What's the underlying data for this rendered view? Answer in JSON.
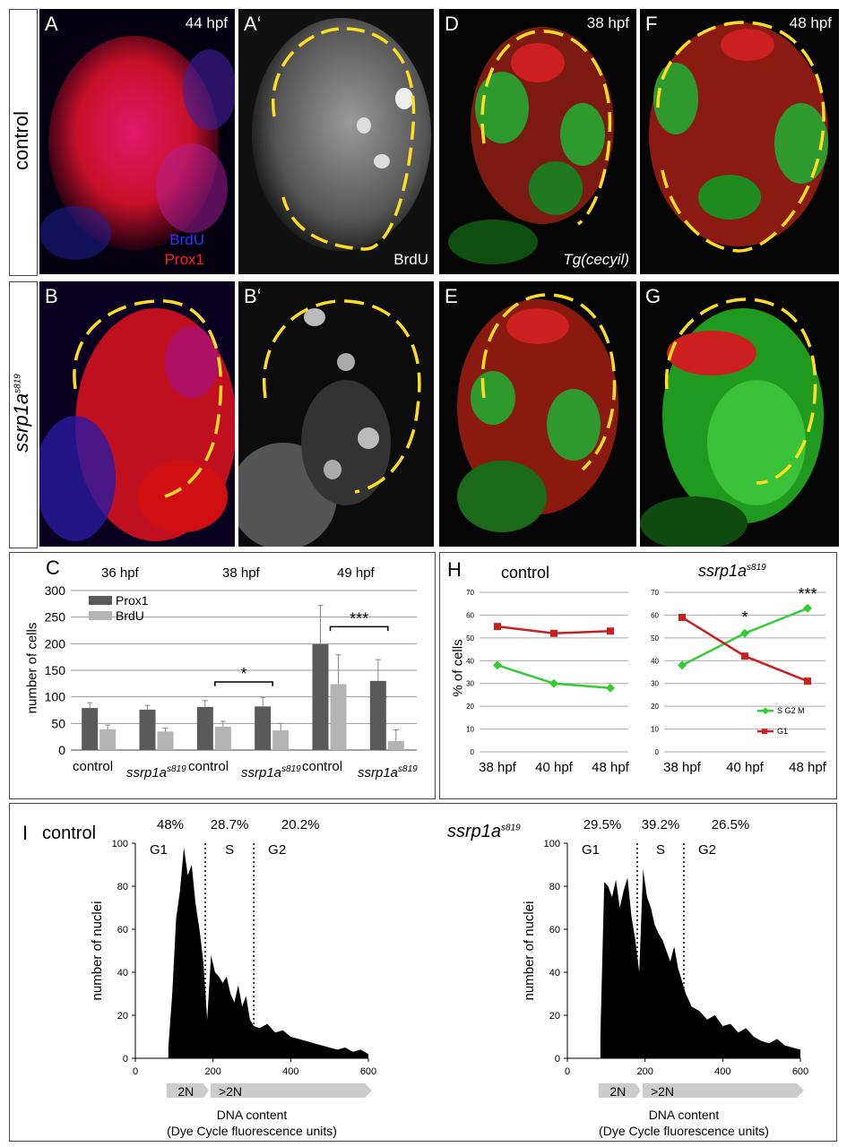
{
  "row_labels": {
    "control": "control",
    "mutant_base": "ssrp1a",
    "mutant_sup": "s819"
  },
  "micrographs": {
    "A": {
      "label": "A",
      "time": "44 hpf",
      "stain1": "BrdU",
      "stain2": "Prox1",
      "colors": {
        "stain1": "#3333ff",
        "stain2": "#ff2020"
      }
    },
    "A_prime": {
      "label": "A‘",
      "stain": "BrdU"
    },
    "B": {
      "label": "B"
    },
    "B_prime": {
      "label": "B‘"
    },
    "D": {
      "label": "D",
      "time": "38 hpf",
      "transgene": "Tg(cecyil)"
    },
    "E": {
      "label": "E"
    },
    "F": {
      "label": "F",
      "time": "48 hpf"
    },
    "G": {
      "label": "G"
    }
  },
  "panel_C": {
    "label": "C",
    "ylabel": "number of cells",
    "legend": [
      "Prox1",
      "BrdU"
    ],
    "time_labels": [
      "36 hpf",
      "38 hpf",
      "49 hpf"
    ],
    "significance": [
      "*",
      "***"
    ]
  },
  "panel_H": {
    "label": "H",
    "ylabel": "% of cells",
    "titles": [
      "control",
      "ssrp1a"
    ],
    "title_sup": "s819",
    "significance": [
      "*",
      "***"
    ]
  },
  "panel_I": {
    "label": "I",
    "titles": [
      "control",
      "ssrp1a"
    ],
    "title_sup": "s819",
    "ylabel": "number of nuclei",
    "xlabel": "DNA content",
    "xlabel2": "(Dye Cycle fluorescence units)",
    "phase_labels": [
      "G1",
      "S",
      "G2"
    ],
    "ploidy_labels": [
      "2N",
      ">2N"
    ],
    "percentages": [
      [
        "48%",
        "28.7%",
        "20.2%"
      ],
      [
        "29.5%",
        "39.2%",
        "26.5%"
      ]
    ]
  },
  "chart_data": [
    {
      "type": "bar",
      "panel": "C",
      "categories": [
        "control",
        "ssrp1a s819",
        "control",
        "ssrp1a s819",
        "control",
        "ssrp1a s819"
      ],
      "groups": [
        "36 hpf",
        "36 hpf",
        "38 hpf",
        "38 hpf",
        "49 hpf",
        "49 hpf"
      ],
      "series": [
        {
          "name": "Prox1",
          "values": [
            79,
            76,
            81,
            82,
            199,
            130
          ],
          "errors": [
            10,
            8,
            12,
            17,
            73,
            40
          ],
          "color": "#5a5a5a"
        },
        {
          "name": "BrdU",
          "values": [
            39,
            35,
            44,
            37,
            124,
            17
          ],
          "errors": [
            8,
            6,
            10,
            13,
            55,
            21
          ],
          "color": "#b4b4b4"
        }
      ],
      "ylabel": "number of cells",
      "ylim": [
        0,
        300
      ],
      "yticks": [
        0,
        50,
        100,
        150,
        200,
        250,
        300
      ],
      "grid": true,
      "legend": "top-left"
    },
    {
      "type": "line",
      "panel": "H-control",
      "title": "control",
      "x": [
        "38 hpf",
        "40 hpf",
        "48 hpf"
      ],
      "series": [
        {
          "name": "S G2 M",
          "values": [
            38,
            30,
            28
          ],
          "color": "#33cc33"
        },
        {
          "name": "G1",
          "values": [
            55,
            52,
            53
          ],
          "color": "#c82020"
        }
      ],
      "ylabel": "% of cells",
      "ylim": [
        0,
        70
      ],
      "yticks": [
        0,
        10,
        20,
        30,
        40,
        50,
        60,
        70
      ],
      "grid": true
    },
    {
      "type": "line",
      "panel": "H-mutant",
      "title": "ssrp1a s819",
      "x": [
        "38 hpf",
        "40 hpf",
        "48 hpf"
      ],
      "series": [
        {
          "name": "S G2 M",
          "values": [
            38,
            52,
            63
          ],
          "color": "#33cc33"
        },
        {
          "name": "G1",
          "values": [
            59,
            42,
            31
          ],
          "color": "#c82020"
        }
      ],
      "ylim": [
        0,
        70
      ],
      "yticks": [
        0,
        10,
        20,
        30,
        40,
        50,
        60,
        70
      ],
      "grid": true,
      "legend": "bottom-right"
    },
    {
      "type": "area",
      "panel": "I-control",
      "title": "control",
      "xlabel": "DNA content",
      "ylabel": "number of nuclei",
      "xlim": [
        0,
        600
      ],
      "ylim": [
        0,
        100
      ],
      "xticks": [
        0,
        200,
        400,
        600
      ],
      "yticks": [
        0,
        20,
        40,
        60,
        80,
        100
      ],
      "gates": [
        180,
        305
      ],
      "x": [
        85,
        95,
        105,
        115,
        125,
        135,
        145,
        155,
        165,
        175,
        185,
        195,
        205,
        215,
        225,
        235,
        245,
        255,
        265,
        275,
        285,
        295,
        305,
        320,
        340,
        360,
        380,
        400,
        420,
        440,
        460,
        480,
        500,
        520,
        540,
        560,
        580,
        600
      ],
      "values": [
        5,
        30,
        65,
        78,
        98,
        85,
        90,
        72,
        60,
        45,
        18,
        48,
        40,
        38,
        35,
        38,
        30,
        26,
        34,
        24,
        29,
        18,
        15,
        14,
        16,
        12,
        13,
        10,
        9,
        8,
        7,
        6,
        5,
        4,
        5,
        3,
        4,
        2
      ]
    },
    {
      "type": "area",
      "panel": "I-mutant",
      "title": "ssrp1a s819",
      "xlabel": "DNA content",
      "ylabel": "number of nuclei",
      "xlim": [
        0,
        600
      ],
      "ylim": [
        0,
        100
      ],
      "xticks": [
        0,
        200,
        400,
        600
      ],
      "yticks": [
        0,
        20,
        40,
        60,
        80,
        100
      ],
      "gates": [
        180,
        300
      ],
      "x": [
        85,
        95,
        105,
        115,
        125,
        135,
        145,
        155,
        165,
        175,
        185,
        195,
        205,
        215,
        225,
        235,
        245,
        255,
        265,
        275,
        285,
        295,
        305,
        320,
        340,
        360,
        380,
        400,
        420,
        440,
        460,
        480,
        500,
        520,
        540,
        560,
        580,
        600
      ],
      "values": [
        10,
        82,
        80,
        75,
        83,
        70,
        78,
        84,
        66,
        55,
        40,
        88,
        75,
        70,
        62,
        58,
        55,
        50,
        45,
        52,
        42,
        36,
        30,
        24,
        22,
        18,
        20,
        15,
        16,
        12,
        14,
        10,
        8,
        7,
        9,
        6,
        5,
        4
      ]
    }
  ]
}
